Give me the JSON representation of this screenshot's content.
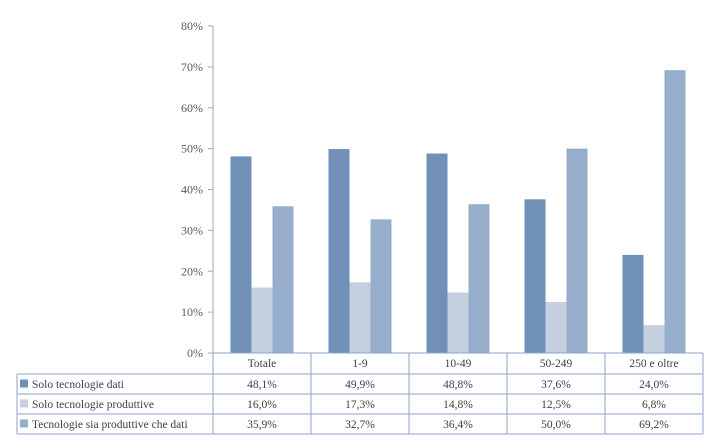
{
  "chart_data": {
    "type": "bar",
    "categories": [
      "Totale",
      "1-9",
      "10-49",
      "50-249",
      "250 e oltre"
    ],
    "series": [
      {
        "name": "Solo tecnologie dati",
        "values": [
          48.1,
          49.9,
          48.8,
          37.6,
          24.0
        ],
        "labels": [
          "48,1%",
          "49,9%",
          "48,8%",
          "37,6%",
          "24,0%"
        ],
        "color": "#7090B8"
      },
      {
        "name": "Solo tecnologie produttive",
        "values": [
          16.0,
          17.3,
          14.8,
          12.5,
          6.8
        ],
        "labels": [
          "16,0%",
          "17,3%",
          "14,8%",
          "12,5%",
          "6,8%"
        ],
        "color": "#C4CFE0"
      },
      {
        "name": "Tecnologie sia produttive che dati",
        "values": [
          35.9,
          32.7,
          36.4,
          50.0,
          69.2
        ],
        "labels": [
          "35,9%",
          "32,7%",
          "36,4%",
          "50,0%",
          "69,2%"
        ],
        "color": "#96AECC"
      }
    ],
    "yticks": [
      "0%",
      "10%",
      "20%",
      "30%",
      "40%",
      "50%",
      "60%",
      "70%",
      "80%"
    ],
    "ylim": [
      0,
      80
    ],
    "grid": false,
    "legend": "data-table-left",
    "title": "",
    "xlabel": "",
    "ylabel": ""
  }
}
